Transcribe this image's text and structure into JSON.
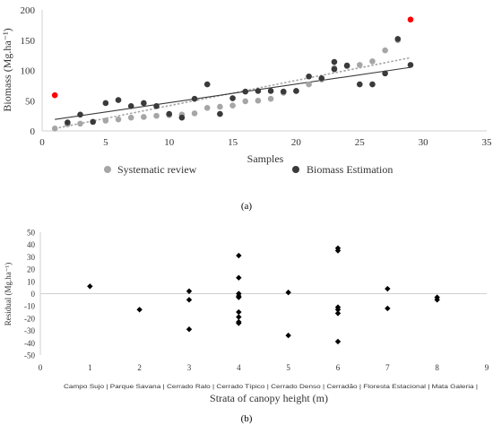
{
  "panel_labels": [
    "(a)",
    "(b)"
  ],
  "chart_data": [
    {
      "type": "scatter",
      "title": "",
      "xlabel": "Samples",
      "ylabel": "Biomass (Mg.ha⁻¹)",
      "xlim": [
        0,
        35
      ],
      "ylim": [
        0,
        200
      ],
      "xticks": [
        0,
        5,
        10,
        15,
        20,
        25,
        30,
        35
      ],
      "yticks": [
        0,
        50,
        100,
        150,
        200
      ],
      "grid": false,
      "legend_position": "bottom",
      "colors": {
        "systematic": "#a6a6a6",
        "estimation": "#3a3a3a",
        "outlier": "#ff0000"
      },
      "series": [
        {
          "name": "Systematic review",
          "x": [
            1,
            2,
            3,
            4,
            5,
            6,
            7,
            8,
            9,
            10,
            11,
            12,
            13,
            14,
            15,
            16,
            17,
            18,
            19,
            20,
            21,
            22,
            23,
            24,
            25,
            26,
            27,
            28
          ],
          "y": [
            4,
            11,
            12,
            15,
            17,
            19,
            22,
            23,
            25,
            26,
            27,
            29,
            38,
            40,
            42,
            49,
            50,
            53,
            63,
            66,
            77,
            85,
            104,
            107,
            109,
            115,
            133,
            150
          ]
        },
        {
          "name": "Biomass Estimation",
          "x": [
            2,
            3,
            4,
            5,
            6,
            7,
            8,
            9,
            10,
            11,
            12,
            13,
            14,
            15,
            16,
            17,
            18,
            19,
            20,
            21,
            22,
            23,
            23,
            24,
            25,
            26,
            27,
            28,
            29
          ],
          "y": [
            14,
            27,
            15,
            46,
            51,
            41,
            46,
            41,
            28,
            22,
            53,
            77,
            28,
            54,
            65,
            66,
            66,
            65,
            66,
            90,
            87,
            114,
            102,
            108,
            77,
            77,
            95,
            152,
            109
          ]
        }
      ],
      "highlighted_points": [
        {
          "x": 1,
          "y": 59
        },
        {
          "x": 29,
          "y": 184
        }
      ],
      "trendlines": [
        {
          "series": "Systematic review",
          "style": "dotted",
          "from": [
            1,
            4
          ],
          "to": [
            29,
            121
          ]
        },
        {
          "series": "Biomass Estimation",
          "style": "solid",
          "from": [
            1,
            19
          ],
          "to": [
            29,
            105
          ]
        }
      ]
    },
    {
      "type": "scatter",
      "title": "",
      "xlabel": "Strata of canopy height (m)",
      "ylabel": "Residual (Mg.ha⁻¹)",
      "xlim": [
        0,
        9
      ],
      "ylim": [
        -50,
        50
      ],
      "xticks": [
        0,
        1,
        2,
        3,
        4,
        5,
        6,
        7,
        8,
        9
      ],
      "yticks": [
        50,
        40,
        30,
        20,
        10,
        0,
        -10,
        -20,
        -30,
        -40,
        -50
      ],
      "grid": false,
      "marker": "diamond",
      "categories": [
        "Campo Sujo",
        "Parque Savana",
        "Cerrado Ralo",
        "Cerrado Típico",
        "Cerrado Denso",
        "Cerradão",
        "Floresta Estacional",
        "Mata Galeria"
      ],
      "points": [
        {
          "x": 1,
          "y": 6
        },
        {
          "x": 2,
          "y": -13
        },
        {
          "x": 3,
          "y": 2
        },
        {
          "x": 3,
          "y": -5
        },
        {
          "x": 3,
          "y": -29
        },
        {
          "x": 4,
          "y": 31
        },
        {
          "x": 4,
          "y": 13
        },
        {
          "x": 4,
          "y": 0
        },
        {
          "x": 4,
          "y": -2
        },
        {
          "x": 4,
          "y": -3
        },
        {
          "x": 4,
          "y": -15
        },
        {
          "x": 4,
          "y": -19
        },
        {
          "x": 4,
          "y": -23
        },
        {
          "x": 4,
          "y": -24
        },
        {
          "x": 5,
          "y": 1
        },
        {
          "x": 5,
          "y": -34
        },
        {
          "x": 6,
          "y": 37
        },
        {
          "x": 6,
          "y": 35
        },
        {
          "x": 6,
          "y": -11
        },
        {
          "x": 6,
          "y": -13
        },
        {
          "x": 6,
          "y": -16
        },
        {
          "x": 6,
          "y": -39
        },
        {
          "x": 7,
          "y": 4
        },
        {
          "x": 7,
          "y": -12
        },
        {
          "x": 8,
          "y": -3
        },
        {
          "x": 8,
          "y": -5
        }
      ]
    }
  ]
}
